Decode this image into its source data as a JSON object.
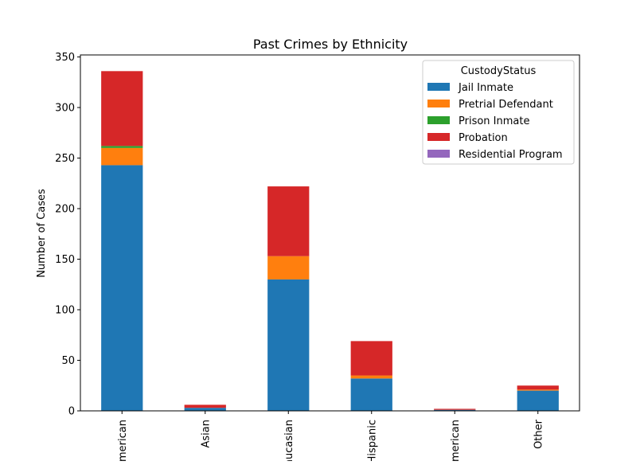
{
  "chart_data": {
    "type": "bar",
    "stacked": true,
    "title": "Past Crimes by Ethnicity",
    "xlabel": "",
    "ylabel": "Number of Cases",
    "ylim": [
      0,
      352
    ],
    "yticks": [
      0,
      50,
      100,
      150,
      200,
      250,
      300,
      350
    ],
    "categories": [
      "American",
      "Asian",
      "Caucasian",
      "Hispanic",
      "American",
      "Other"
    ],
    "category_labels_visible": [
      "merican",
      "Asian",
      "ucasian",
      "lispanic",
      "merican",
      "Other"
    ],
    "legend_title": "CustodyStatus",
    "legend_position": "top-right",
    "grid": false,
    "series": [
      {
        "name": "Jail Inmate",
        "color": "#1f77b4",
        "values": [
          243,
          3,
          130,
          32,
          1,
          20
        ]
      },
      {
        "name": "Pretrial Defendant",
        "color": "#ff7f0e",
        "values": [
          17,
          0,
          23,
          3,
          0,
          1
        ]
      },
      {
        "name": "Prison Inmate",
        "color": "#2ca02c",
        "values": [
          2,
          0,
          0,
          0,
          0,
          0
        ]
      },
      {
        "name": "Probation",
        "color": "#d62728",
        "values": [
          74,
          3,
          69,
          34,
          1,
          4
        ]
      },
      {
        "name": "Residential Program",
        "color": "#9467bd",
        "values": [
          0,
          0,
          0,
          0,
          0,
          0
        ]
      }
    ]
  }
}
